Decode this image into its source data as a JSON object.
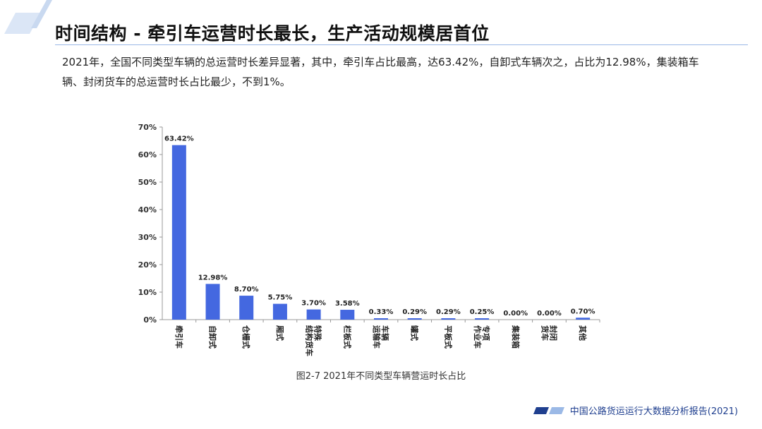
{
  "header": {
    "title": "时间结构 - 牵引车运营时长最长，生产活动规模居首位",
    "description": "2021年，全国不同类型车辆的总运营时长差异显著，其中，牵引车占比最高，达63.42%，自卸式车辆次之，占比为12.98%，集装箱车辆、封闭货车的总运营时长占比最少，不到1%。"
  },
  "chart_data": {
    "type": "bar",
    "categories": [
      "牵引车",
      "自卸式",
      "仓栅式",
      "厢式",
      "特殊结构货车",
      "栏板式",
      "车辆运输车",
      "罐式",
      "平板式",
      "专项作业车",
      "集装箱",
      "封闭货车",
      "其他"
    ],
    "values": [
      63.42,
      12.98,
      8.7,
      5.75,
      3.7,
      3.58,
      0.33,
      0.29,
      0.29,
      0.25,
      0.0,
      0.0,
      0.7
    ],
    "data_labels": [
      "63.42%",
      "12.98%",
      "8.70%",
      "5.75%",
      "3.70%",
      "3.58%",
      "0.33%",
      "0.29%",
      "0.29%",
      "0.25%",
      "0.00%",
      "0.00%",
      "0.70%"
    ],
    "y_ticks": [
      "0%",
      "10%",
      "20%",
      "30%",
      "40%",
      "50%",
      "60%",
      "70%"
    ],
    "ylim": [
      0,
      70
    ],
    "grid": false,
    "legend": "none",
    "bar_color": "#4468e0",
    "title": "",
    "xlabel": "",
    "ylabel": ""
  },
  "caption": "图2-7 2021年不同类型车辆营运时长占比",
  "footer": {
    "text": "中国公路货运运行大数据分析报告(2021)"
  },
  "colors": {
    "accent": "#1f3f8f",
    "bar": "#4468e0",
    "rule": "#9bb9e6"
  }
}
